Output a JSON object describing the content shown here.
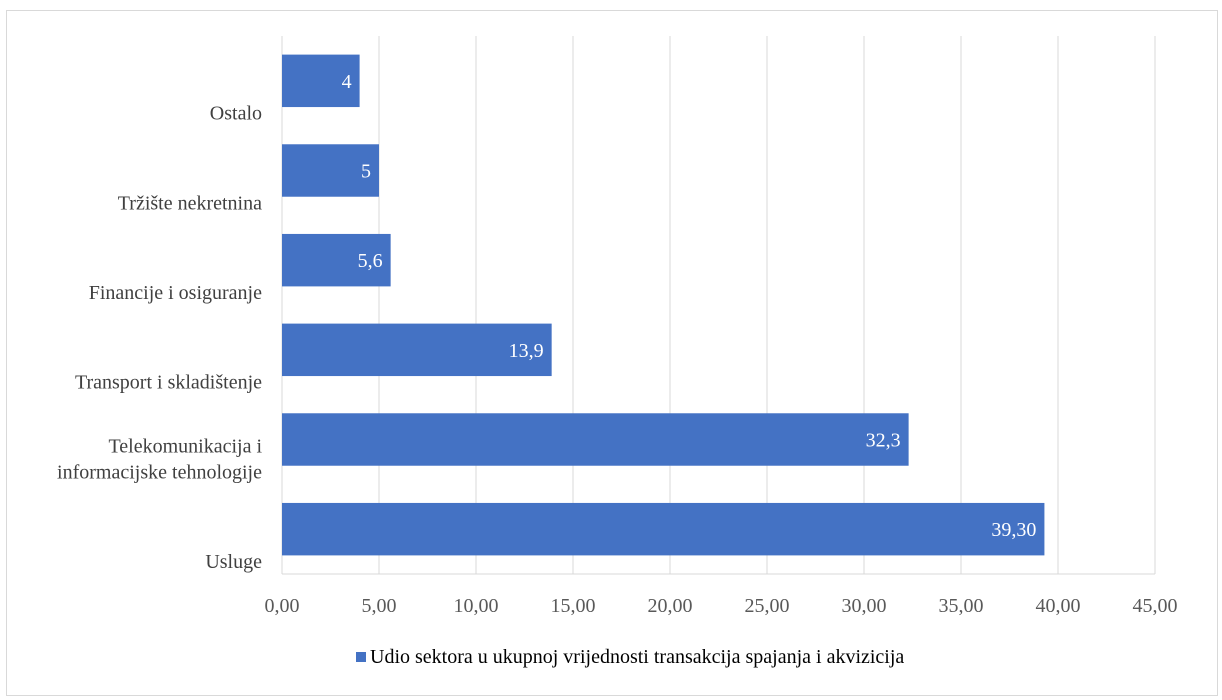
{
  "chart_data": {
    "type": "bar",
    "orientation": "horizontal",
    "categories": [
      [
        "Usluge"
      ],
      [
        "Telekomunikacija i",
        "informacijske tehnologije"
      ],
      [
        "Transport i skladištenje"
      ],
      [
        "Financije i osiguranje"
      ],
      [
        "Tržište nekretnina"
      ],
      [
        "Ostalo"
      ]
    ],
    "values": [
      39.3,
      32.3,
      13.9,
      5.6,
      5,
      4
    ],
    "data_labels": [
      "39,30",
      "32,3",
      "13,9",
      "5,6",
      "5",
      "4"
    ],
    "x_ticks": [
      "0,00",
      "5,00",
      "10,00",
      "15,00",
      "20,00",
      "25,00",
      "30,00",
      "35,00",
      "40,00",
      "45,00"
    ],
    "xlim": [
      0,
      45
    ],
    "grid": true,
    "legend_position": "bottom",
    "series": [
      {
        "name": "Udio sektora u ukupnoj vrijednosti transakcija spajanja i akvizicija",
        "color": "#4472c4"
      }
    ]
  }
}
